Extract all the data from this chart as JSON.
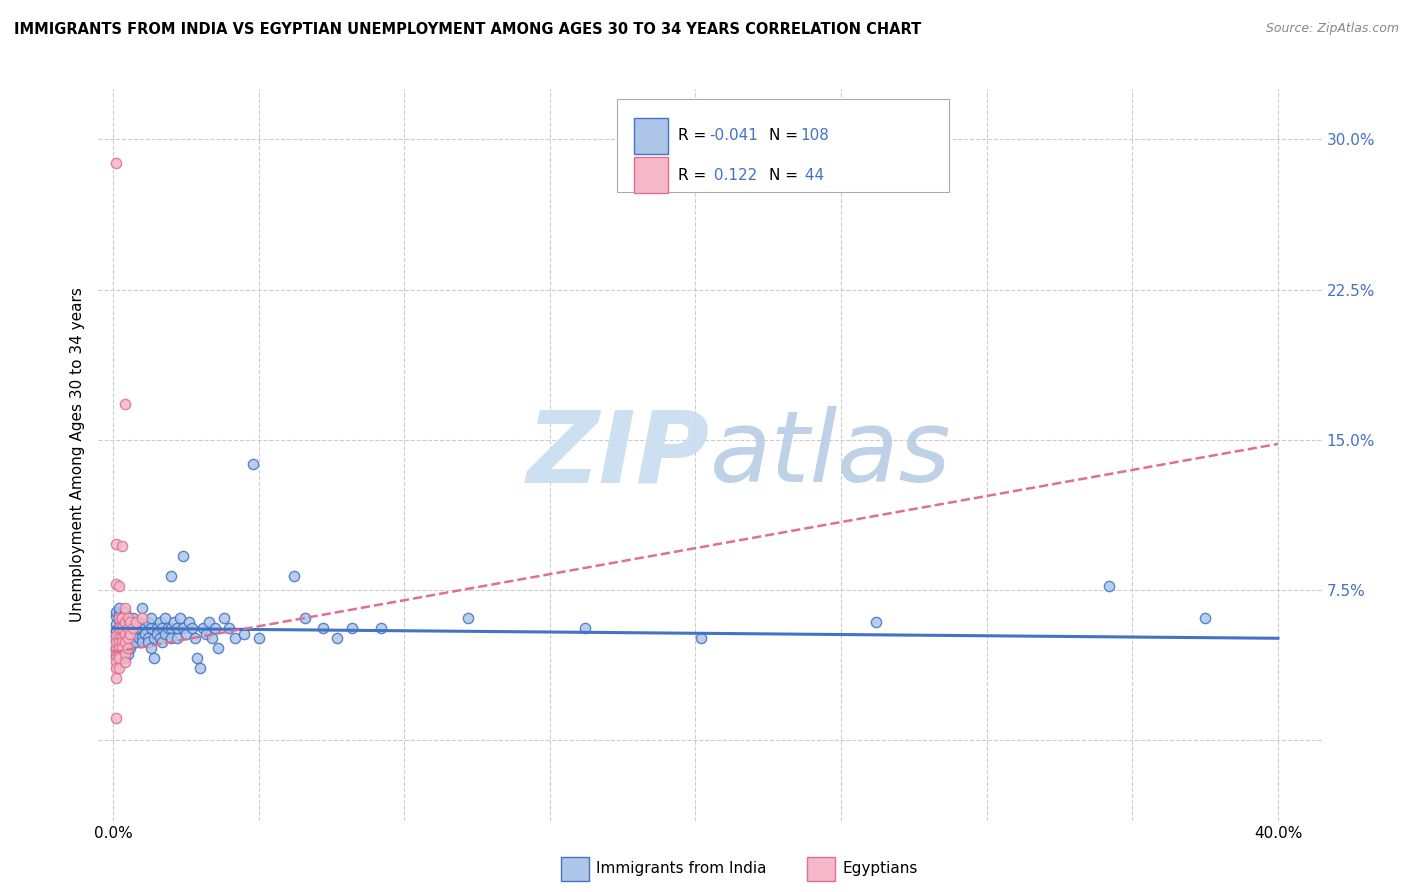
{
  "title": "IMMIGRANTS FROM INDIA VS EGYPTIAN UNEMPLOYMENT AMONG AGES 30 TO 34 YEARS CORRELATION CHART",
  "source": "Source: ZipAtlas.com",
  "ylabel": "Unemployment Among Ages 30 to 34 years",
  "x_ticks": [
    0.0,
    0.05,
    0.1,
    0.15,
    0.2,
    0.25,
    0.3,
    0.35,
    0.4
  ],
  "y_ticks": [
    0.0,
    0.075,
    0.15,
    0.225,
    0.3
  ],
  "y_tick_labels": [
    "",
    "7.5%",
    "15.0%",
    "22.5%",
    "30.0%"
  ],
  "xlim": [
    -0.005,
    0.415
  ],
  "ylim": [
    -0.04,
    0.325
  ],
  "legend_india_label": "Immigrants from India",
  "legend_egypt_label": "Egyptians",
  "india_color": "#adc6e8",
  "india_edge_color": "#4472c4",
  "egypt_color": "#f4b8c8",
  "egypt_edge_color": "#e07090",
  "india_trend_color": "#4472c4",
  "egypt_trend_color": "#e07090",
  "watermark_color": "#dce8f5",
  "grid_color": "#cccccc",
  "background_color": "#ffffff",
  "title_color": "#000000",
  "source_color": "#888888",
  "axis_label_color": "#4472c4",
  "legend_text_color": "#000000",
  "legend_R_value_color": "#4472c4",
  "legend_N_value_color": "#4472c4",
  "india_scatter": [
    [
      0.001,
      0.058
    ],
    [
      0.001,
      0.05
    ],
    [
      0.001,
      0.062
    ],
    [
      0.001,
      0.046
    ],
    [
      0.001,
      0.052
    ],
    [
      0.001,
      0.042
    ],
    [
      0.001,
      0.055
    ],
    [
      0.001,
      0.064
    ],
    [
      0.001,
      0.045
    ],
    [
      0.001,
      0.054
    ],
    [
      0.002,
      0.06
    ],
    [
      0.002,
      0.052
    ],
    [
      0.002,
      0.046
    ],
    [
      0.002,
      0.056
    ],
    [
      0.002,
      0.048
    ],
    [
      0.002,
      0.063
    ],
    [
      0.002,
      0.041
    ],
    [
      0.002,
      0.066
    ],
    [
      0.003,
      0.056
    ],
    [
      0.003,
      0.049
    ],
    [
      0.003,
      0.053
    ],
    [
      0.003,
      0.046
    ],
    [
      0.003,
      0.061
    ],
    [
      0.003,
      0.043
    ],
    [
      0.004,
      0.056
    ],
    [
      0.004,
      0.049
    ],
    [
      0.004,
      0.053
    ],
    [
      0.004,
      0.059
    ],
    [
      0.004,
      0.064
    ],
    [
      0.004,
      0.046
    ],
    [
      0.004,
      0.041
    ],
    [
      0.005,
      0.056
    ],
    [
      0.005,
      0.051
    ],
    [
      0.005,
      0.049
    ],
    [
      0.005,
      0.059
    ],
    [
      0.005,
      0.043
    ],
    [
      0.006,
      0.056
    ],
    [
      0.006,
      0.051
    ],
    [
      0.006,
      0.053
    ],
    [
      0.006,
      0.046
    ],
    [
      0.007,
      0.059
    ],
    [
      0.007,
      0.049
    ],
    [
      0.007,
      0.056
    ],
    [
      0.007,
      0.061
    ],
    [
      0.008,
      0.051
    ],
    [
      0.008,
      0.056
    ],
    [
      0.008,
      0.049
    ],
    [
      0.009,
      0.056
    ],
    [
      0.009,
      0.051
    ],
    [
      0.009,
      0.059
    ],
    [
      0.01,
      0.056
    ],
    [
      0.01,
      0.051
    ],
    [
      0.01,
      0.066
    ],
    [
      0.01,
      0.049
    ],
    [
      0.011,
      0.056
    ],
    [
      0.011,
      0.053
    ],
    [
      0.012,
      0.051
    ],
    [
      0.012,
      0.049
    ],
    [
      0.012,
      0.059
    ],
    [
      0.013,
      0.056
    ],
    [
      0.013,
      0.061
    ],
    [
      0.013,
      0.046
    ],
    [
      0.014,
      0.051
    ],
    [
      0.014,
      0.041
    ],
    [
      0.015,
      0.056
    ],
    [
      0.015,
      0.053
    ],
    [
      0.016,
      0.059
    ],
    [
      0.016,
      0.051
    ],
    [
      0.017,
      0.056
    ],
    [
      0.017,
      0.049
    ],
    [
      0.018,
      0.061
    ],
    [
      0.018,
      0.053
    ],
    [
      0.019,
      0.056
    ],
    [
      0.02,
      0.082
    ],
    [
      0.02,
      0.056
    ],
    [
      0.02,
      0.051
    ],
    [
      0.021,
      0.059
    ],
    [
      0.022,
      0.051
    ],
    [
      0.022,
      0.056
    ],
    [
      0.023,
      0.061
    ],
    [
      0.024,
      0.092
    ],
    [
      0.024,
      0.056
    ],
    [
      0.025,
      0.053
    ],
    [
      0.026,
      0.059
    ],
    [
      0.027,
      0.056
    ],
    [
      0.028,
      0.051
    ],
    [
      0.029,
      0.041
    ],
    [
      0.03,
      0.036
    ],
    [
      0.031,
      0.056
    ],
    [
      0.032,
      0.053
    ],
    [
      0.033,
      0.059
    ],
    [
      0.034,
      0.051
    ],
    [
      0.035,
      0.056
    ],
    [
      0.036,
      0.046
    ],
    [
      0.038,
      0.061
    ],
    [
      0.04,
      0.056
    ],
    [
      0.042,
      0.051
    ],
    [
      0.045,
      0.053
    ],
    [
      0.048,
      0.138
    ],
    [
      0.05,
      0.051
    ],
    [
      0.062,
      0.082
    ],
    [
      0.066,
      0.061
    ],
    [
      0.072,
      0.056
    ],
    [
      0.077,
      0.051
    ],
    [
      0.082,
      0.056
    ],
    [
      0.092,
      0.056
    ],
    [
      0.122,
      0.061
    ],
    [
      0.162,
      0.056
    ],
    [
      0.202,
      0.051
    ],
    [
      0.262,
      0.059
    ],
    [
      0.342,
      0.077
    ],
    [
      0.375,
      0.061
    ]
  ],
  "egypt_scatter": [
    [
      0.001,
      0.288
    ],
    [
      0.001,
      0.098
    ],
    [
      0.001,
      0.078
    ],
    [
      0.001,
      0.052
    ],
    [
      0.001,
      0.046
    ],
    [
      0.001,
      0.049
    ],
    [
      0.001,
      0.043
    ],
    [
      0.001,
      0.041
    ],
    [
      0.001,
      0.039
    ],
    [
      0.001,
      0.036
    ],
    [
      0.001,
      0.031
    ],
    [
      0.001,
      0.011
    ],
    [
      0.002,
      0.077
    ],
    [
      0.002,
      0.061
    ],
    [
      0.002,
      0.056
    ],
    [
      0.002,
      0.051
    ],
    [
      0.002,
      0.049
    ],
    [
      0.002,
      0.046
    ],
    [
      0.002,
      0.043
    ],
    [
      0.002,
      0.041
    ],
    [
      0.002,
      0.036
    ],
    [
      0.003,
      0.097
    ],
    [
      0.003,
      0.061
    ],
    [
      0.003,
      0.056
    ],
    [
      0.003,
      0.051
    ],
    [
      0.003,
      0.049
    ],
    [
      0.003,
      0.046
    ],
    [
      0.003,
      0.061
    ],
    [
      0.004,
      0.168
    ],
    [
      0.004,
      0.066
    ],
    [
      0.004,
      0.059
    ],
    [
      0.004,
      0.053
    ],
    [
      0.004,
      0.049
    ],
    [
      0.004,
      0.043
    ],
    [
      0.004,
      0.039
    ],
    [
      0.005,
      0.061
    ],
    [
      0.005,
      0.056
    ],
    [
      0.005,
      0.051
    ],
    [
      0.005,
      0.046
    ],
    [
      0.006,
      0.059
    ],
    [
      0.006,
      0.053
    ],
    [
      0.007,
      0.056
    ],
    [
      0.008,
      0.059
    ],
    [
      0.01,
      0.061
    ]
  ],
  "india_trend_x": [
    0.0,
    0.4
  ],
  "india_trend_y": [
    0.056,
    0.051
  ],
  "egypt_trend_x": [
    0.0,
    0.4
  ],
  "egypt_trend_y": [
    0.044,
    0.148
  ]
}
